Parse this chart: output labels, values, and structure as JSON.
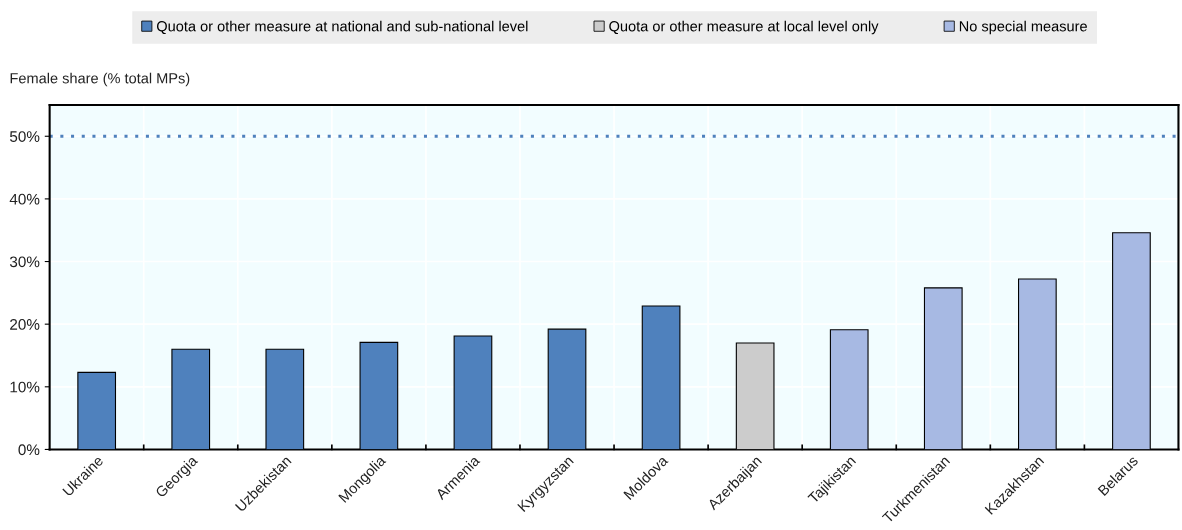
{
  "chart_data": {
    "type": "bar",
    "ylabel": "Female share (% total MPs)",
    "categories": [
      "Ukraine",
      "Georgia",
      "Uzbekistan",
      "Mongolia",
      "Armenia",
      "Kyrgyzstan",
      "Moldova",
      "Azerbaijan",
      "Tajikistan",
      "Turkmenistan",
      "Kazakhstan",
      "Belarus"
    ],
    "series": [
      {
        "name": "Quota or other measure at national and sub-national level",
        "color": "#4f81bd",
        "values": [
          12.3,
          16.0,
          16.0,
          17.1,
          18.1,
          19.2,
          22.9,
          null,
          null,
          null,
          null,
          null
        ]
      },
      {
        "name": "Quota or other measure at local level only",
        "color": "#cccccc",
        "values": [
          null,
          null,
          null,
          null,
          null,
          null,
          null,
          17.0,
          null,
          null,
          null,
          null
        ]
      },
      {
        "name": "No special measure",
        "color": "#a7b9e3",
        "values": [
          null,
          null,
          null,
          null,
          null,
          null,
          null,
          null,
          19.1,
          25.8,
          27.2,
          34.6
        ]
      }
    ],
    "ylim": [
      0,
      55
    ],
    "yticks": [
      {
        "value": 0,
        "label": "0%"
      },
      {
        "value": 10,
        "label": "10%"
      },
      {
        "value": 20,
        "label": "20%"
      },
      {
        "value": 30,
        "label": "30%"
      },
      {
        "value": 40,
        "label": "40%"
      },
      {
        "value": 50,
        "label": "50%"
      }
    ],
    "ref_lines": [
      {
        "axis": "y",
        "value": 50,
        "color": "#4f81bd",
        "line_style": "dotted"
      }
    ],
    "grid": true,
    "legend": "top"
  }
}
